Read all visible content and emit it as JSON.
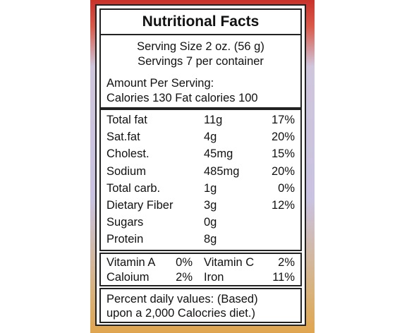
{
  "header": {
    "title": "Nutritional Facts"
  },
  "serving": [
    "Serving Size 2 oz. (56 g)",
    "Servings 7 per container"
  ],
  "amount": [
    "Amount Per Serving:",
    "Calories 130 Fat calories 100"
  ],
  "nutrients": {
    "rows": [
      [
        "Total fat",
        "11g",
        "17%"
      ],
      [
        "Sat.fat",
        "4g",
        "20%"
      ],
      [
        "Cholest.",
        "45mg",
        "15%"
      ],
      [
        "Sodium",
        "485mg",
        "20%"
      ],
      [
        "Total carb.",
        "1g",
        "0%"
      ],
      [
        "Dietary Fiber",
        "3g",
        "12%"
      ],
      [
        "Sugars",
        "0g"
      ],
      [
        "Protein",
        "8g"
      ]
    ]
  },
  "vitamins": {
    "rows": [
      [
        "Vitamin A",
        "0%",
        "Vitamin C",
        "2%"
      ],
      [
        "Caloium",
        "2%",
        "Iron",
        "11%"
      ]
    ]
  },
  "footnote": [
    "Percent daily values: (Based)",
    "upon a 2,000 Calocries diet.)"
  ]
}
